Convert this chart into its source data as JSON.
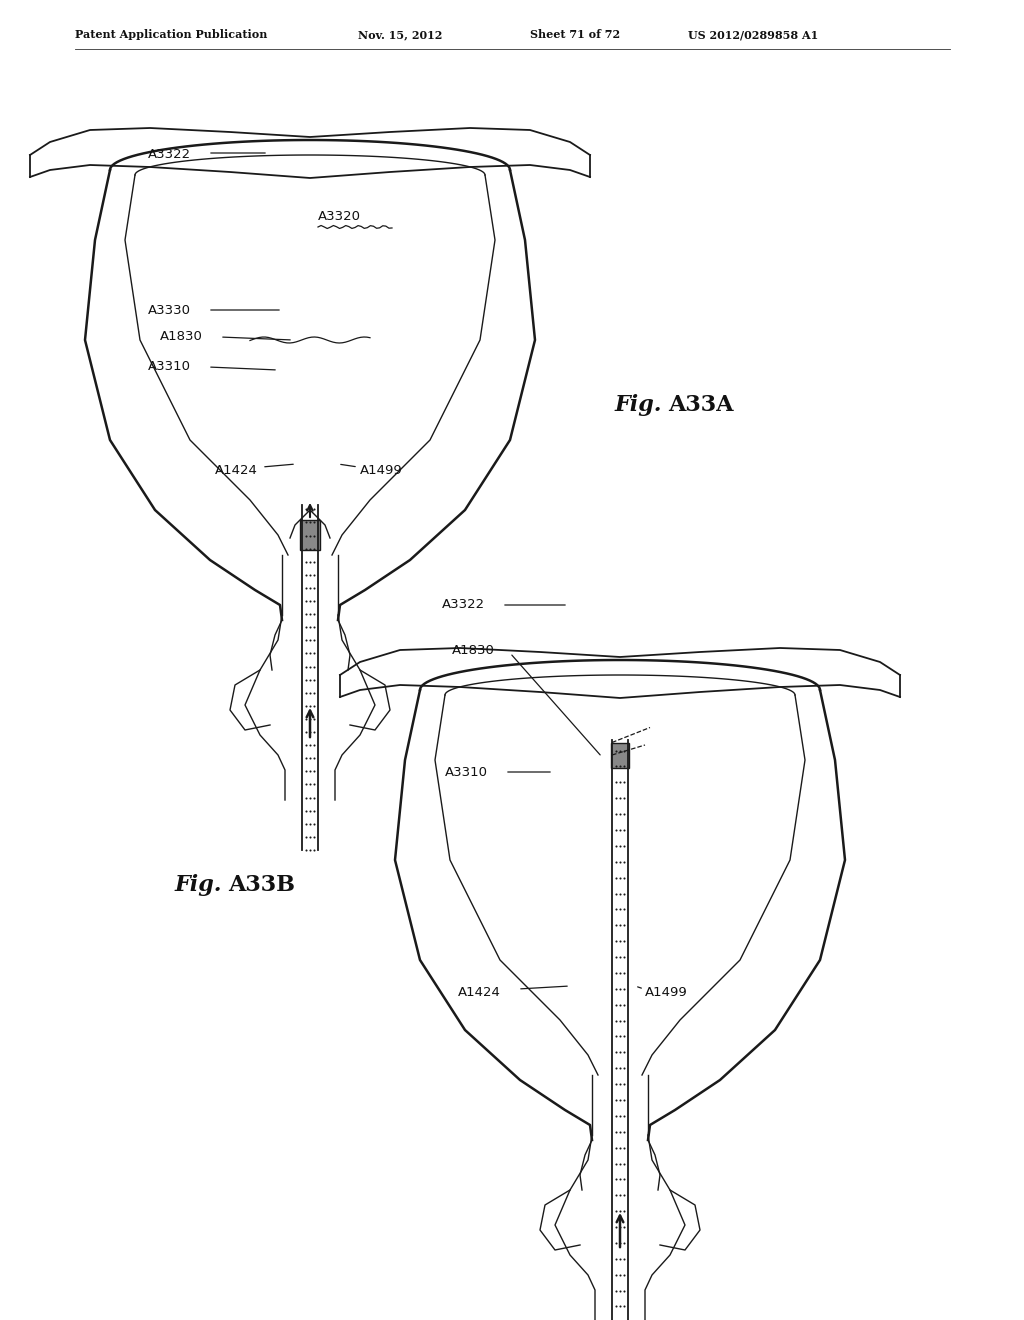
{
  "background_color": "#ffffff",
  "page_width": 10.24,
  "page_height": 13.2,
  "header_text": "Patent Application Publication",
  "header_date": "Nov. 15, 2012",
  "header_sheet": "Sheet 71 of 72",
  "header_patent": "US 2012/0289858 A1"
}
